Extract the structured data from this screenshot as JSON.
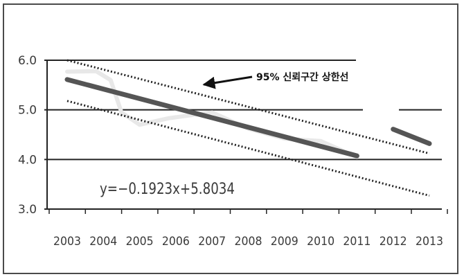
{
  "chart_data": {
    "type": "line",
    "x": [
      2003,
      2004,
      2005,
      2006,
      2007,
      2008,
      2009,
      2010,
      2011,
      2012,
      2013
    ],
    "x_tick_labels": [
      "2003",
      "2004",
      "2005",
      "2006",
      "2007",
      "2008",
      "2009",
      "2010",
      "2011",
      "2012",
      "2013"
    ],
    "y_tick_labels": [
      "6.0",
      "5.0",
      "4.0",
      "3.0"
    ],
    "y_ticks": [
      6.0,
      5.0,
      4.0,
      3.0
    ],
    "ylim": [
      3.0,
      6.0
    ],
    "xlim": [
      2003,
      2013
    ],
    "grid": true,
    "series": [
      {
        "role": "actual",
        "x": [
          2003,
          2003.8,
          2004.2,
          2004.5,
          2005,
          2005.8,
          2006.5,
          2007,
          2008,
          2009,
          2010,
          2011
        ],
        "values": [
          5.77,
          5.78,
          5.6,
          4.95,
          4.7,
          4.83,
          4.9,
          4.95,
          4.62,
          4.42,
          4.37,
          4.05
        ],
        "color": "#e8e8e8"
      },
      {
        "role": "fitted",
        "x": [
          2003,
          2011
        ],
        "values": [
          5.611,
          4.073
        ],
        "color": "#555555"
      },
      {
        "role": "forecast",
        "x": [
          2012,
          2013
        ],
        "values": [
          4.61,
          4.32
        ],
        "color": "#555555"
      },
      {
        "role": "upper-bound",
        "x": [
          2003,
          2013
        ],
        "values": [
          6.0,
          4.12
        ],
        "color": "#222222"
      },
      {
        "role": "lower-bound",
        "x": [
          2003,
          2013
        ],
        "values": [
          5.18,
          3.27
        ],
        "color": "#222222"
      }
    ],
    "annotations": [
      {
        "text": "95% 신뢰구간 상한선",
        "points_to": {
          "x": 2007,
          "y": 5.55
        }
      },
      {
        "text": "y=−0.1923x+5.8034"
      }
    ]
  }
}
